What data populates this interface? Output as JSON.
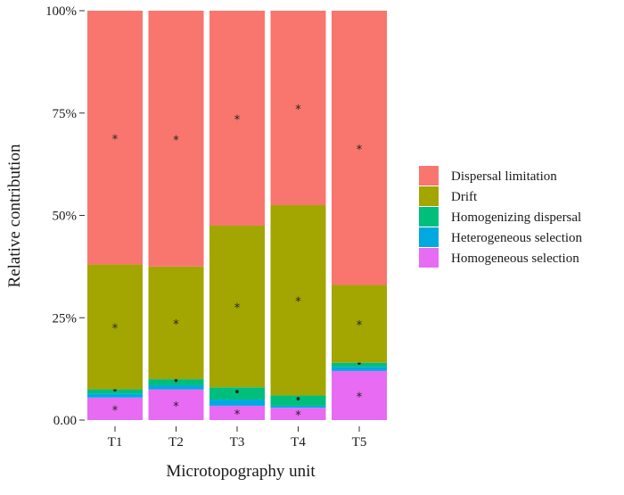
{
  "chart_data": {
    "type": "bar",
    "stacked": true,
    "xlabel": "Microtopography unit",
    "ylabel": "Relative contribution",
    "ylim": [
      0,
      100
    ],
    "yticks": [
      "0.00",
      "25%",
      "50%",
      "75%",
      "100%"
    ],
    "categories": [
      "T1",
      "T2",
      "T3",
      "T4",
      "T5"
    ],
    "series": [
      {
        "name": "Homogeneous selection",
        "color": "#E76BF3",
        "values": [
          5.5,
          7.5,
          3.5,
          3.0,
          12.0
        ],
        "marks": [
          "*",
          "*",
          "*",
          "*",
          "*"
        ]
      },
      {
        "name": "Heterogeneous selection",
        "color": "#00A9E0",
        "values": [
          1.0,
          1.0,
          1.5,
          0.5,
          1.0
        ],
        "marks": [
          "",
          "",
          "",
          "",
          ""
        ]
      },
      {
        "name": "Homogenizing dispersal",
        "color": "#00BF7D",
        "values": [
          1.0,
          1.5,
          3.0,
          2.5,
          1.0
        ],
        "marks": [
          "•",
          "•",
          "•",
          "•",
          "•"
        ]
      },
      {
        "name": "Drift",
        "color": "#A3A500",
        "values": [
          30.5,
          27.5,
          39.5,
          46.5,
          19.0
        ],
        "marks": [
          "*",
          "*",
          "*",
          "*",
          "*"
        ]
      },
      {
        "name": "Dispersal limitation",
        "color": "#F8766D",
        "values": [
          62.0,
          62.5,
          52.5,
          47.5,
          67.0
        ],
        "marks": [
          "*",
          "*",
          "*",
          "*",
          "*"
        ]
      }
    ],
    "legend_order": [
      "Dispersal limitation",
      "Drift",
      "Homogenizing dispersal",
      "Heterogeneous selection",
      "Homogeneous selection"
    ],
    "legend_position": "right",
    "grid": false
  }
}
